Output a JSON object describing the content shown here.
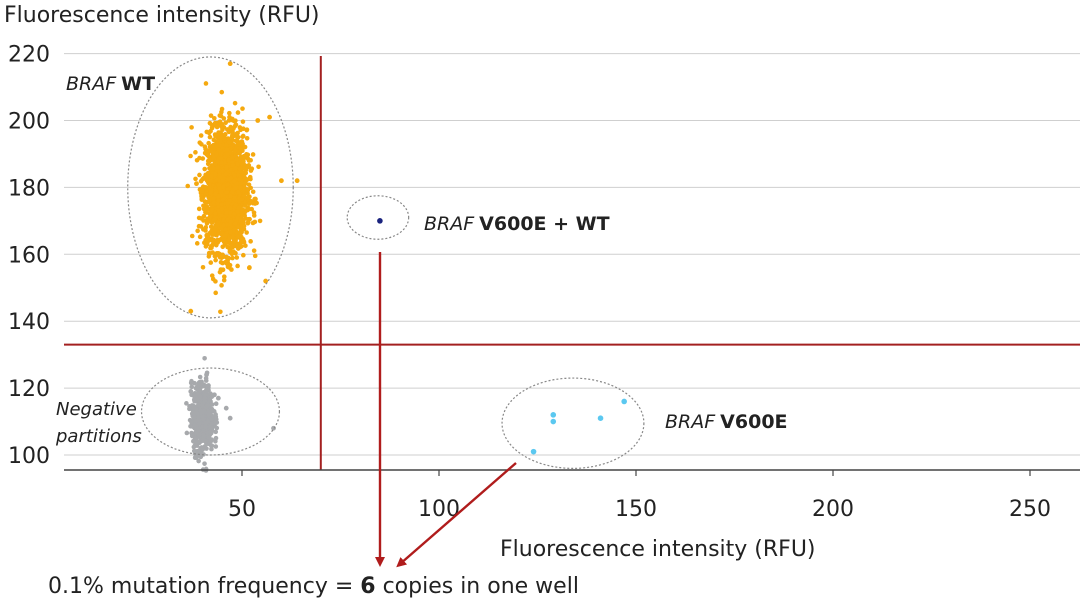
{
  "chart_data": {
    "type": "scatter",
    "title": "",
    "xlabel": "Fluorescence intensity (RFU)",
    "ylabel": "Fluorescence intensity (RFU)",
    "xlim": [
      0,
      260
    ],
    "ylim": [
      96,
      222
    ],
    "x_ticks": [
      50,
      100,
      150,
      200,
      250
    ],
    "y_ticks": [
      100,
      120,
      140,
      160,
      180,
      200,
      220
    ],
    "threshold_x": 70,
    "threshold_y": 133,
    "grid": "horizontal",
    "clusters": [
      {
        "name": "BRAF WT",
        "label_italic": "BRAF",
        "label_bold": "WT",
        "color": "#f5a90f",
        "center": [
          46,
          179
        ],
        "spread": [
          2.6,
          9
        ],
        "bulk_count": 2200,
        "outliers": [
          [
            47,
            217
          ],
          [
            57,
            201
          ],
          [
            54,
            200
          ],
          [
            64,
            182
          ],
          [
            60,
            182
          ],
          [
            56,
            152
          ],
          [
            37,
            143
          ],
          [
            49,
            195
          ]
        ]
      },
      {
        "name": "Negative partitions",
        "label_line1": "Negative",
        "label_line2": "partitions",
        "color": "#a7a9ac",
        "center": [
          40,
          111
        ],
        "spread": [
          1.4,
          5
        ],
        "bulk_count": 600,
        "outliers": [
          [
            39,
            121
          ],
          [
            41,
            124
          ],
          [
            44,
            117
          ],
          [
            46,
            114
          ],
          [
            47,
            111
          ],
          [
            43,
            118
          ],
          [
            58,
            108
          ],
          [
            37,
            119
          ]
        ]
      },
      {
        "name": "BRAF V600E + WT",
        "label_italic": "BRAF",
        "label_bold": "V600E + WT",
        "color": "#1a237e",
        "points": [
          [
            85,
            170
          ]
        ]
      },
      {
        "name": "BRAF V600E",
        "label_italic": "BRAF",
        "label_bold": "V600E",
        "color": "#5bc8f0",
        "points": [
          [
            129,
            112
          ],
          [
            129,
            110
          ],
          [
            141,
            111
          ],
          [
            147,
            116
          ],
          [
            124,
            101
          ]
        ]
      }
    ]
  },
  "caption": {
    "prefix": "0.1% mutation frequency = ",
    "count": "6",
    "suffix": " copies in one well"
  }
}
